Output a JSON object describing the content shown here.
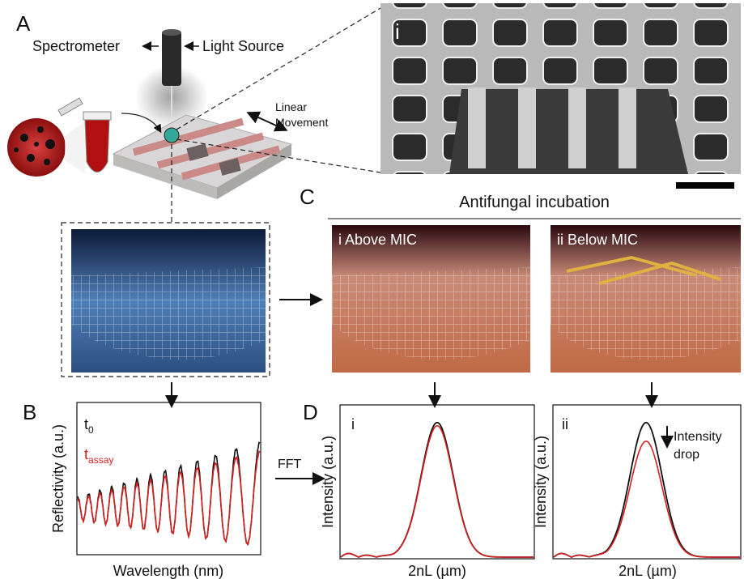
{
  "panel_a": {
    "label": "A",
    "spectrometer": "Spectrometer",
    "light_source": "Light Source",
    "movement": [
      "Linear",
      "Movement"
    ],
    "sem_label": "i"
  },
  "panel_c": {
    "label": "C",
    "title": "Antifungal incubation",
    "images": [
      "i Above MIC",
      "ii Below MIC"
    ]
  },
  "panel_b": {
    "label": "B",
    "legend": [
      {
        "text": "t",
        "subscript": "0"
      },
      {
        "text": "t",
        "subscript": "assay"
      }
    ],
    "y_label": "Reflectivity (a.u.)",
    "x_label": "Wavelength (nm)"
  },
  "fft_label": "FFT",
  "panel_d": {
    "label": "D",
    "plots": [
      {
        "label": "i",
        "y_label": "Intensity (a.u.)",
        "x_label": "2nL (µm)"
      },
      {
        "label": "ii",
        "y_label": "Intensity (a.u.)",
        "x_label": "2nL (µm)",
        "note": [
          "Intensity",
          "drop"
        ]
      }
    ]
  }
}
